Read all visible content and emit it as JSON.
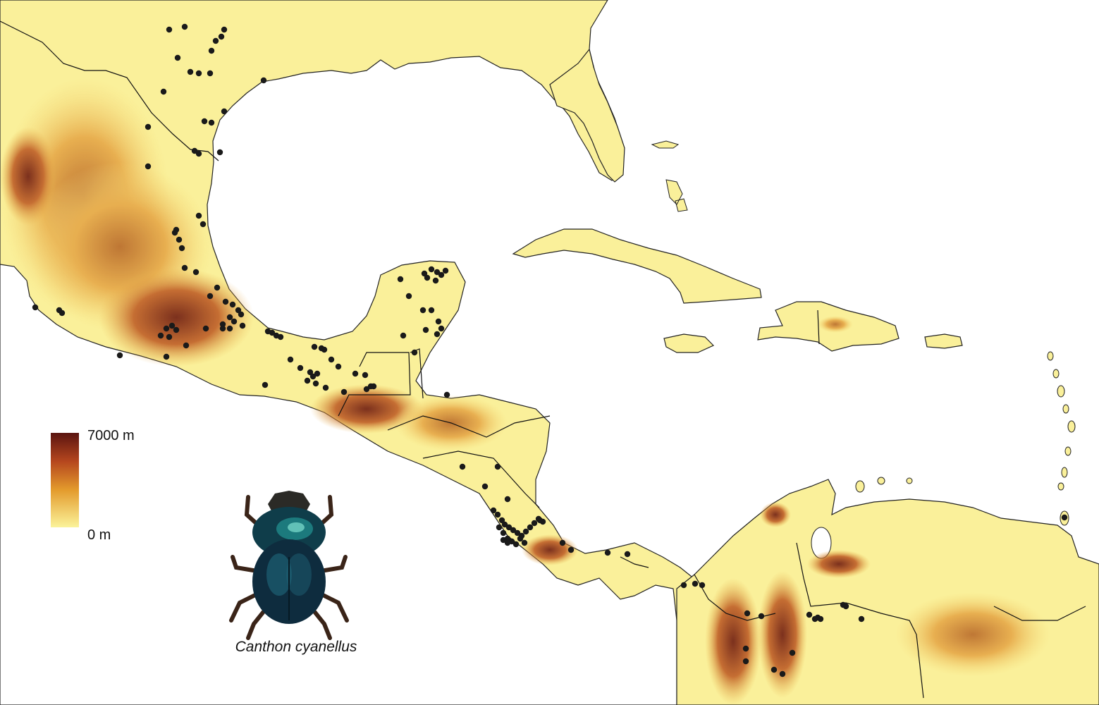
{
  "legend": {
    "max_label": "7000 m",
    "min_label": "0 m",
    "colors": {
      "high": "#5a1410",
      "mid_high": "#b5461e",
      "mid": "#e39a2c",
      "low": "#f9e36a",
      "sea_level": "#fbf39a"
    }
  },
  "species": {
    "name": "Canthon cyanellus",
    "icon": "dung-beetle-icon"
  },
  "colors": {
    "ocean": "#ffffff",
    "land": "#faf09a",
    "highland": "#e8a83c",
    "peak": "#8a2a14",
    "border": "#111111",
    "record_dot": "#1a1a1a"
  }
}
